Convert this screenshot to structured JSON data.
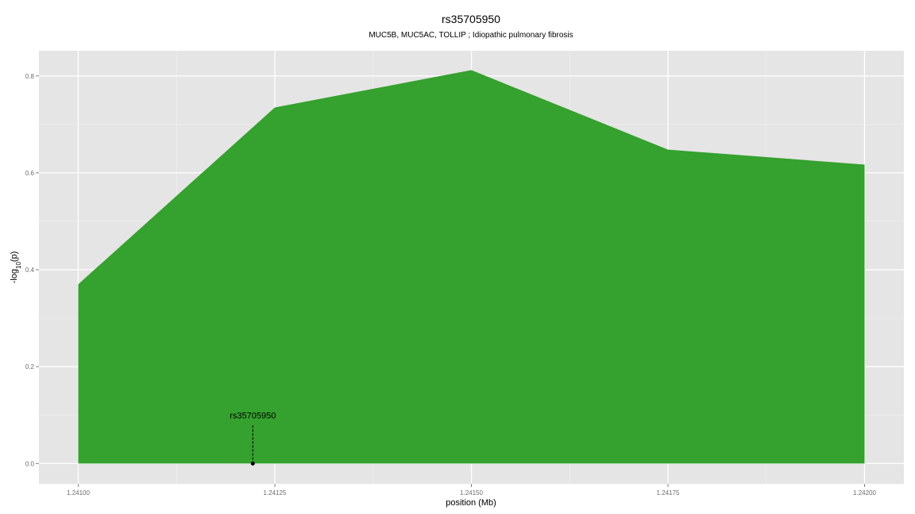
{
  "chart_data": {
    "type": "area",
    "title": "rs35705950",
    "subtitle": "MUC5B, MUC5AC, TOLLIP ; Idiopathic pulmonary fibrosis",
    "xlabel": "position (Mb)",
    "ylabel": "-log10(p)",
    "x": [
      1.241,
      1.24125,
      1.2415,
      1.24175,
      1.242
    ],
    "series": [
      {
        "values": [
          0.37,
          0.735,
          0.812,
          0.648,
          0.617
        ]
      }
    ],
    "xlim": [
      1.24095,
      1.24205
    ],
    "ylim": [
      -0.042,
      0.852
    ],
    "x_ticks": [
      1.241,
      1.24125,
      1.2415,
      1.24175,
      1.242
    ],
    "x_tick_labels": [
      "1.24100",
      "1.24125",
      "1.24150",
      "1.24175",
      "1.24200"
    ],
    "y_ticks": [
      0,
      0.2,
      0.4,
      0.6,
      0.8
    ],
    "y_tick_labels": [
      "0.0",
      "0.2",
      "0.4",
      "0.6",
      "0.8"
    ],
    "grid": true,
    "annotation": {
      "label": "rs35705950",
      "x": 1.241222,
      "y": 0
    },
    "colors": {
      "area": "#35a12e",
      "panel": "#e5e5e5",
      "grid_major": "#ffffff",
      "grid_minor": "#f2f2f2",
      "annotation": "#000000"
    }
  }
}
